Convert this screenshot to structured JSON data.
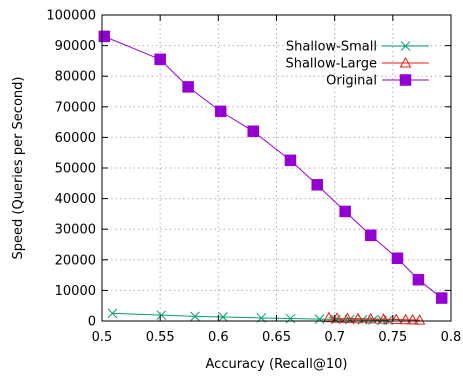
{
  "chart_data": {
    "type": "line",
    "xlabel": "Accuracy (Recall@10)",
    "ylabel": "Speed (Queries per Second)",
    "xlim": [
      0.5,
      0.8
    ],
    "ylim": [
      0,
      100000
    ],
    "xticks": [
      "0.5",
      "0.55",
      "0.6",
      "0.65",
      "0.7",
      "0.75",
      "0.8"
    ],
    "xtick_values": [
      0.5,
      0.55,
      0.6,
      0.65,
      0.7,
      0.75,
      0.8
    ],
    "yticks": [
      "0",
      "10000",
      "20000",
      "30000",
      "40000",
      "50000",
      "60000",
      "70000",
      "80000",
      "90000",
      "100000"
    ],
    "ytick_values": [
      0,
      10000,
      20000,
      30000,
      40000,
      50000,
      60000,
      70000,
      80000,
      90000,
      100000
    ],
    "grid": true,
    "legend_position": "top-right",
    "series": [
      {
        "name": "Shallow-Small",
        "color": "#009e73",
        "marker": "x",
        "x": [
          0.509,
          0.551,
          0.58,
          0.604,
          0.637,
          0.662,
          0.687,
          0.701,
          0.713,
          0.724,
          0.733,
          0.741,
          0.746
        ],
        "y": [
          2500,
          1900,
          1500,
          1300,
          1000,
          800,
          600,
          500,
          450,
          400,
          330,
          280,
          250
        ]
      },
      {
        "name": "Shallow-Large",
        "color": "#e51e10",
        "marker": "triangle",
        "x": [
          0.695,
          0.702,
          0.711,
          0.72,
          0.731,
          0.742,
          0.753,
          0.761,
          0.767,
          0.773
        ],
        "y": [
          1100,
          900,
          850,
          750,
          700,
          600,
          500,
          400,
          350,
          300
        ]
      },
      {
        "name": "Original",
        "color": "#9400d3",
        "marker": "square",
        "x": [
          0.502,
          0.55,
          0.574,
          0.602,
          0.63,
          0.662,
          0.685,
          0.709,
          0.731,
          0.754,
          0.772,
          0.792
        ],
        "y": [
          93000,
          85500,
          76500,
          68500,
          62000,
          52500,
          44500,
          35800,
          28000,
          20500,
          13500,
          7500
        ]
      }
    ]
  }
}
